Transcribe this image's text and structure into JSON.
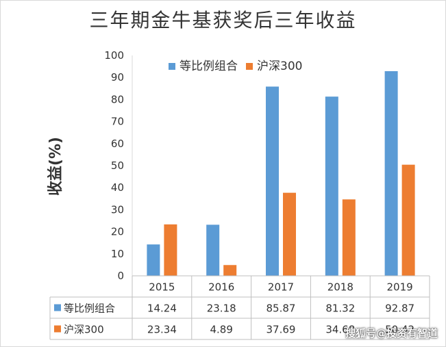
{
  "chart_data": {
    "type": "bar",
    "title": "三年期金牛基获奖后三年收益",
    "ylabel": "收益(%)",
    "categories": [
      "2015",
      "2016",
      "2017",
      "2018",
      "2019"
    ],
    "series": [
      {
        "name": "等比例组合",
        "color": "#5B9BD5",
        "values": [
          14.24,
          23.18,
          85.87,
          81.32,
          92.87
        ]
      },
      {
        "name": "沪深300",
        "color": "#ED7D31",
        "values": [
          23.34,
          4.89,
          37.69,
          34.68,
          50.42
        ]
      }
    ],
    "ylim": [
      0,
      100
    ],
    "yticks": [
      0,
      10,
      20,
      30,
      40,
      50,
      60,
      70,
      80,
      90,
      100
    ],
    "grid": false,
    "legend_position": "top-left",
    "data_table": true
  },
  "watermark": "搜狐号@投资有智道"
}
